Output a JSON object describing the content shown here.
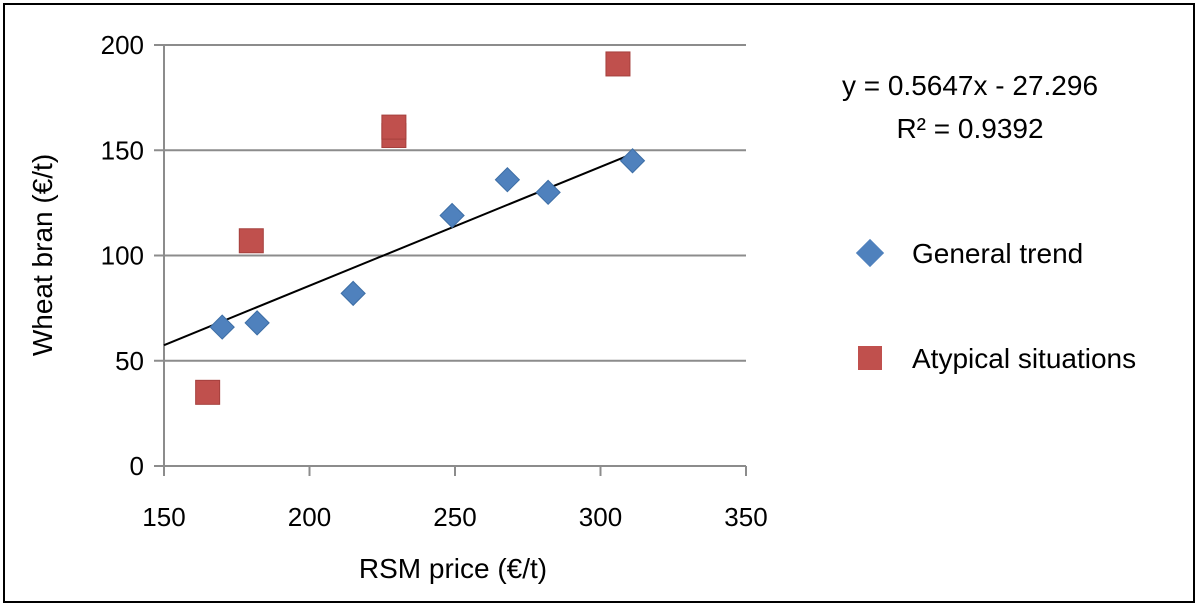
{
  "chart_data": {
    "type": "scatter",
    "title": "",
    "xlabel": "RSM price (€/t)",
    "ylabel": "Wheat bran (€/t)",
    "xlim": [
      150,
      350
    ],
    "ylim": [
      0,
      200
    ],
    "xticks": [
      150,
      200,
      250,
      300,
      350
    ],
    "yticks": [
      0,
      50,
      100,
      150,
      200
    ],
    "x_tick_labels": [
      "150",
      "200",
      "250",
      "300",
      "350"
    ],
    "y_tick_labels": [
      "0",
      "50",
      "100",
      "150",
      "200"
    ],
    "grid": "horizontal",
    "legend_position": "right",
    "series": [
      {
        "name": "General trend",
        "marker": "diamond",
        "color": "#4f81bd",
        "points": [
          {
            "x": 170,
            "y": 66
          },
          {
            "x": 182,
            "y": 68
          },
          {
            "x": 215,
            "y": 82
          },
          {
            "x": 249,
            "y": 119
          },
          {
            "x": 268,
            "y": 136
          },
          {
            "x": 282,
            "y": 130
          },
          {
            "x": 311,
            "y": 145
          }
        ]
      },
      {
        "name": "Atypical situations",
        "marker": "square",
        "color": "#c0504d",
        "points": [
          {
            "x": 165,
            "y": 35
          },
          {
            "x": 180,
            "y": 107
          },
          {
            "x": 229,
            "y": 157
          },
          {
            "x": 229,
            "y": 161
          },
          {
            "x": 306,
            "y": 191
          }
        ]
      }
    ],
    "trendline": {
      "series": "General trend",
      "slope": 0.5647,
      "intercept": -27.296,
      "x_range": [
        150,
        311
      ],
      "equation_label": "y = 0.5647x - 27.296",
      "r2_label": "R² = 0.9392"
    }
  }
}
